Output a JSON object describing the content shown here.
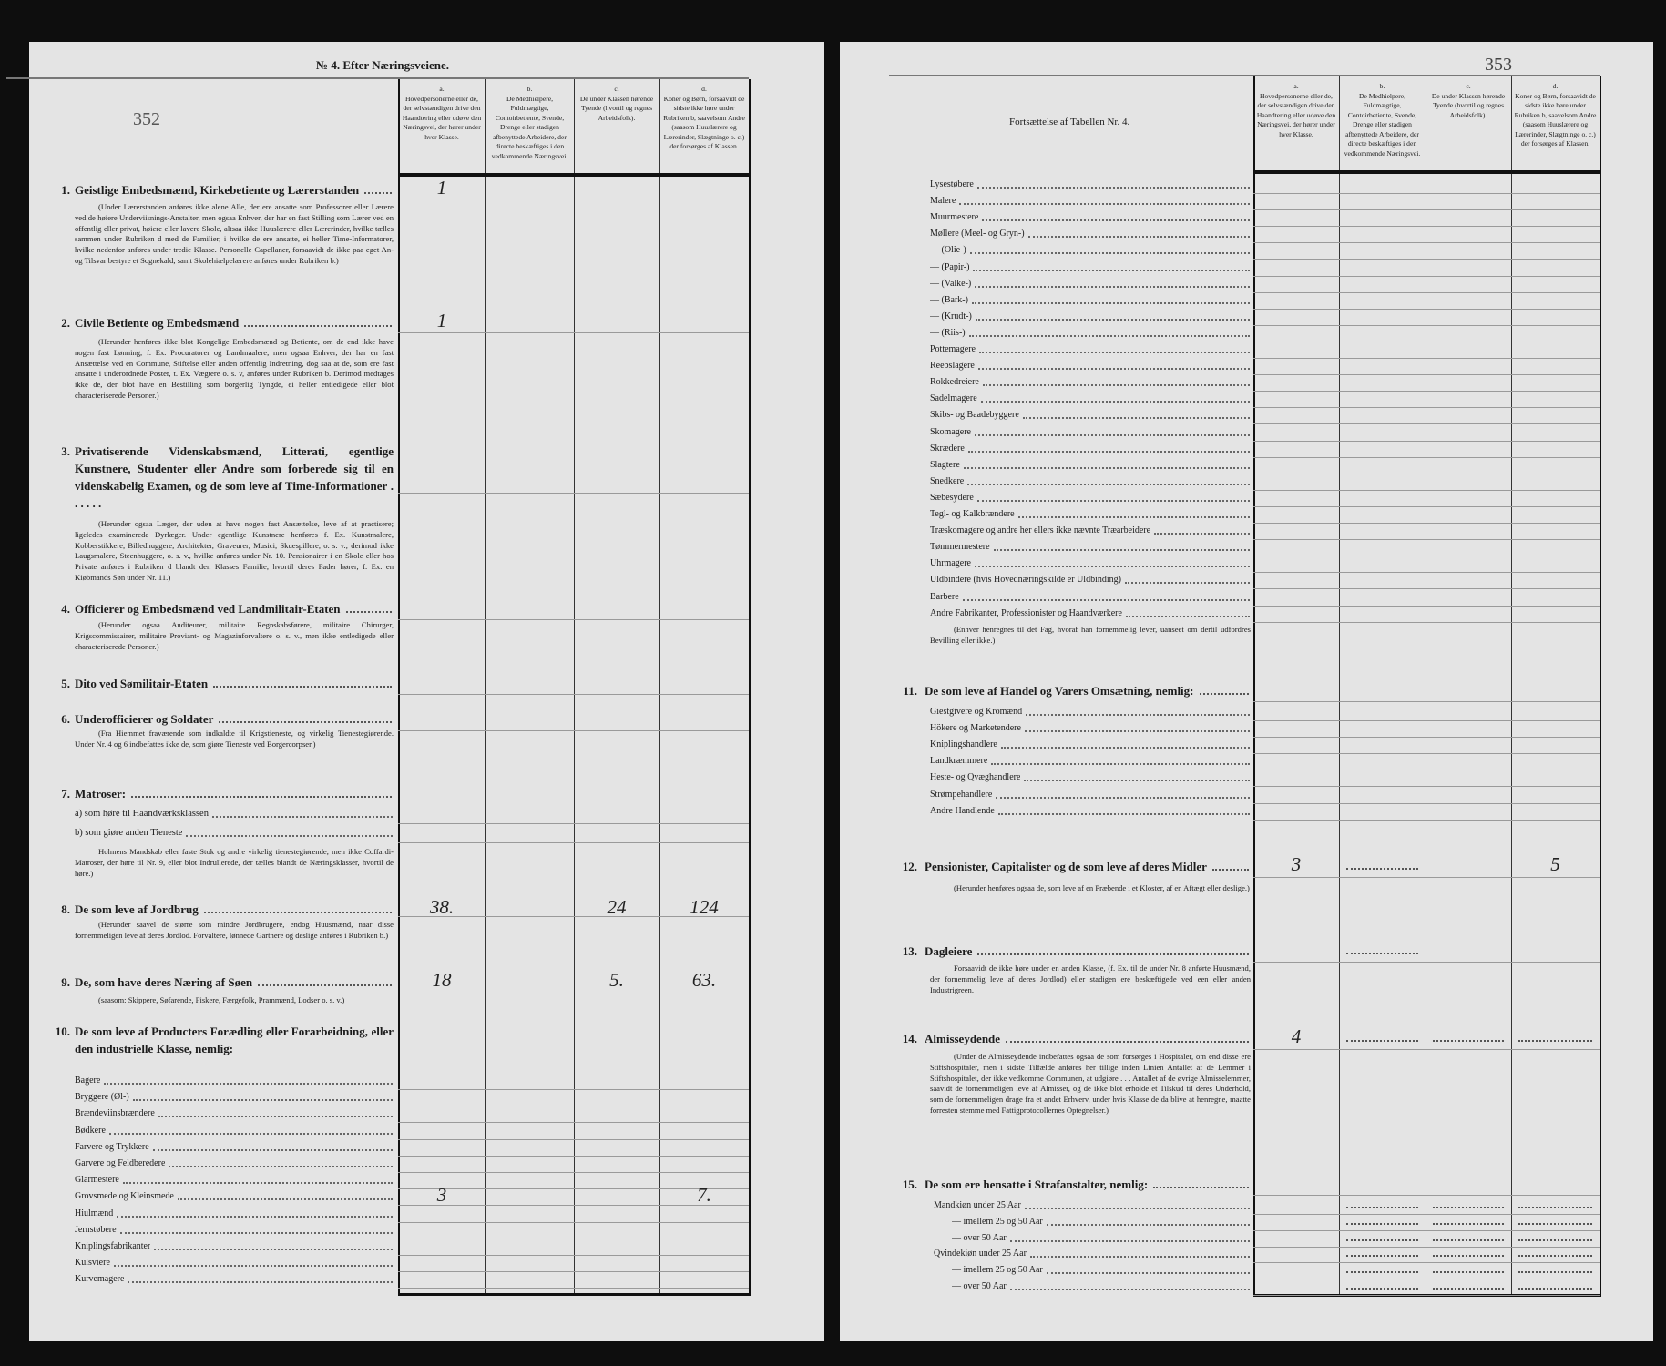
{
  "column_headers": [
    {
      "letter": "a.",
      "text": "Hovedpersonerne eller de, der selvstændigen drive den Haandtering eller udøve den Næringsvei, der hører under hver Klasse."
    },
    {
      "letter": "b.",
      "text": "De Medhielpere, Fuldmægtige, Contoirbetiente, Svende, Drenge eller stadigen afbenyttede Arbeidere, der directe beskæftiges i den vedkommende Næringsvei."
    },
    {
      "letter": "c.",
      "text": "De under Klassen hørende Tyende (hvortil og regnes Arbeidsfolk)."
    },
    {
      "letter": "d.",
      "text": "Koner og Børn, forsaavidt de sidste ikke høre under Rubriken b, saavelsom Andre (saasom Huuslærere og Lærerinder, Slægtninge o. c.) der forsørges af Klassen."
    }
  ],
  "left": {
    "heading": "№ 4. Efter Næringsveiene.",
    "page_number": "352",
    "sections": [
      {
        "number": "1.",
        "title": "Geistlige Embedsmænd, Kirkebetiente og Lærerstanden",
        "note": "(Under Lærerstanden anføres ikke alene Alle, der ere ansatte som Professorer eller Lærere ved de høiere Underviisnings-Anstalter, men ogsaa Enhver, der har en fast Stilling som Lærer ved en offentlig eller privat, høiere eller lavere Skole, altsaa ikke Huuslærere eller Lærerinder, hvilke tælles sammen under Rubriken d med de Familier, i hvilke de ere ansatte, ei heller Time-Informatorer, hvilke nedenfor anføres under tredie Klasse. Personelle Capellaner, forsaavidt de ikke paa eget An- og Tilsvar bestyre et Sognekald, samt Skolehiælpelærere anføres under Rubriken b.)",
        "values": {
          "a": "1"
        }
      },
      {
        "number": "2.",
        "title": "Civile Betiente og Embedsmænd",
        "note": "(Herunder henføres ikke blot Kongelige Embedsmænd og Betiente, om de end ikke have nogen fast Lønning, f. Ex. Procuratorer og Landmaalere, men ogsaa Enhver, der har en fast Ansættelse ved en Commune, Stiftelse eller anden offentlig Indretning, dog saa at de, som ere fast ansatte i underordnede Poster, t. Ex. Vægtere o. s. v, anføres under Rubriken b. Derimod medtages ikke de, der blot have en Bestilling som borgerlig Tyngde, ei heller entledigede eller blot characteriserede Personer.)",
        "values": {
          "a": "1"
        }
      },
      {
        "number": "3.",
        "title": "Privatiserende Videnskabsmænd, Litterati, egentlige Kunstnere, Studenter eller Andre som forberede sig til en videnskabelig Examen, og de som leve af Time-Informationer . . . . . .",
        "note": "(Herunder ogsaa Læger, der uden at have nogen fast Ansættelse, leve af at practisere; ligeledes examinerede Dyrlæger. Under egentlige Kunstnere henføres f. Ex. Kunstmalere, Kobberstikkere, Billedhuggere, Architekter, Graveurer, Musici, Skuespillere, o. s. v.; derimod ikke Laugsmalere, Steenhuggere, o. s. v., hvilke anføres under Nr. 10. Pensionairer i en Skole eller hos Private anføres i Rubriken d blandt den Klasses Familie, hvortil deres Fader hører, f. Ex. en Kiøbmands Søn under Nr. 11.)"
      },
      {
        "number": "4.",
        "title": "Officierer og Embedsmænd ved Landmilitair-Etaten",
        "note": "(Herunder ogsaa Auditeurer, militaire Regnskabsførere, militaire Chirurger, Krigscommissairer, militaire Proviant- og Magazinforvaltere o. s. v., men ikke entledigede eller characteriserede Personer.)"
      },
      {
        "number": "5.",
        "title": "Dito ved Sømilitair-Etaten"
      },
      {
        "number": "6.",
        "title": "Underofficierer og Soldater",
        "note": "(Fra Hiemmet fraværende som indkaldte til Krigstieneste, og virkelig Tienestegiørende. Under Nr. 4 og 6 indbefattes ikke de, som giøre Tieneste ved Borgercorpser.)"
      },
      {
        "number": "7.",
        "title": "Matroser:",
        "sub": [
          "a) som høre til Haandværksklassen",
          "b) som giøre anden Tieneste"
        ],
        "note": "Holmens Mandskab eller faste Stok og andre virkelig tienestegiørende, men ikke Coffardi-Matroser, der høre til Nr. 9, eller blot Indrullerede, der tælles blandt de Næringsklasser, hvortil de høre.)"
      },
      {
        "number": "8.",
        "title": "De som leve af Jordbrug",
        "note": "(Herunder saavel de større som mindre Jordbrugere, endog Huusmænd, naar disse fornemmeligen leve af deres Jordlod. Forvaltere, lønnede Gartnere og deslige anføres i Rubriken b.)",
        "values": {
          "a": "38.",
          "c": "24",
          "d": "124"
        }
      },
      {
        "number": "9.",
        "title": "De, som have deres Næring af Søen",
        "note": "(saasom: Skippere, Søfarende, Fiskere, Færgefolk, Prammænd, Lodser o. s. v.)",
        "values": {
          "a": "18",
          "c": "5.",
          "d": "63."
        }
      },
      {
        "number": "10.",
        "title": "De som leve af Producters Forædling eller Forarbeidning, eller den industrielle Klasse, nemlig:"
      }
    ],
    "industry_items": [
      {
        "label": "Bagere"
      },
      {
        "label": "Bryggere (Øl-)"
      },
      {
        "label": "Brændeviinsbrændere"
      },
      {
        "label": "Bødkere"
      },
      {
        "label": "Farvere og Trykkere"
      },
      {
        "label": "Garvere og Feldberedere"
      },
      {
        "label": "Glarmestere"
      },
      {
        "label": "Grovsmede og Kleinsmede",
        "values": {
          "a": "3",
          "d": "7."
        }
      },
      {
        "label": "Hiulmænd"
      },
      {
        "label": "Jernstøbere"
      },
      {
        "label": "Kniplingsfabrikanter"
      },
      {
        "label": "Kulsviere"
      },
      {
        "label": "Kurvemagere"
      }
    ]
  },
  "right": {
    "heading": "Fortsættelse af Tabellen Nr. 4.",
    "page_number": "353",
    "industry_items": [
      "Lysestøbere",
      "Malere",
      "Muurmestere",
      "Møllere (Meel- og Gryn-)",
      "— (Olie-)",
      "— (Papir-)",
      "— (Valke-)",
      "— (Bark-)",
      "— (Krudt-)",
      "— (Riis-)",
      "Pottemagere",
      "Reebslagere",
      "Rokkedreiere",
      "Sadelmagere",
      "Skibs- og Baadebyggere",
      "Skomagere",
      "Skrædere",
      "Slagtere",
      "Snedkere",
      "Sæbesydere",
      "Tegl- og Kalkbrændere",
      "Træskomagere og andre her ellers ikke nævnte Træarbeidere",
      "Tømmermestere",
      "Uhrmagere",
      "Uldbindere (hvis Hovednæringskilde er Uldbinding)",
      "Barbere",
      "Andre Fabrikanter, Professionister og Haandværkere"
    ],
    "industry_note": "(Enhver henregnes til det Fag, hvoraf han fornemmelig lever, uanseet om dertil udfordres Bevilling eller ikke.)",
    "section11": {
      "number": "11.",
      "title": "De som leve af Handel og Varers Omsætning, nemlig:",
      "items": [
        "Giestgivere og Kromænd",
        "Hökere og Marketendere",
        "Kniplingshandlere",
        "Landkræmmere",
        "Heste- og Qvæghandlere",
        "Strømpehandlere",
        "Andre Handlende"
      ]
    },
    "section12": {
      "number": "12.",
      "title": "Pensionister, Capitalister og de som leve af deres Midler",
      "note": "(Herunder henføres ogsaa de, som leve af en Præbende i et Kloster, af en Aftægt eller deslige.)",
      "values": {
        "a": "3",
        "d": "5"
      }
    },
    "section13": {
      "number": "13.",
      "title": "Dagleiere",
      "note": "Forsaavidt de ikke høre under en anden Klasse, (f. Ex. til de under Nr. 8 anførte Huusmænd, der fornemmelig leve af deres Jordlod) eller stadigen ere beskæftigede ved een eller anden Industrigreen."
    },
    "section14": {
      "number": "14.",
      "title": "Almisseydende",
      "note": "(Under de Almisseydende indbefattes ogsaa de som forsørges i Hospitaler, om end disse ere Stiftshospitaler, men i sidste Tilfælde anføres her tillige inden Linien Antallet af de Lemmer i Stiftshospitalet, der ikke vedkomme Communen, at udgiøre . . . Antallet af de øvrige Almisselemmer, saavidt de fornemmeligen leve af Almisser, og de ikke blot erholde et Tilskud til deres Underhold, som de fornemmeligen drage fra et andet Erhverv, under hvis Klasse de da blive at henregne, maatte forresten stemme med Fattigprotocollernes Optegnelser.)",
      "values": {
        "a": "4"
      }
    },
    "section15": {
      "number": "15.",
      "title": "De som ere hensatte i Strafanstalter, nemlig:",
      "items": [
        "Mandkiøn under 25 Aar",
        "— imellem 25 og 50 Aar",
        "— over 50 Aar",
        "Qvindekiøn under 25 Aar",
        "— imellem 25 og 50 Aar",
        "— over 50 Aar"
      ]
    }
  }
}
